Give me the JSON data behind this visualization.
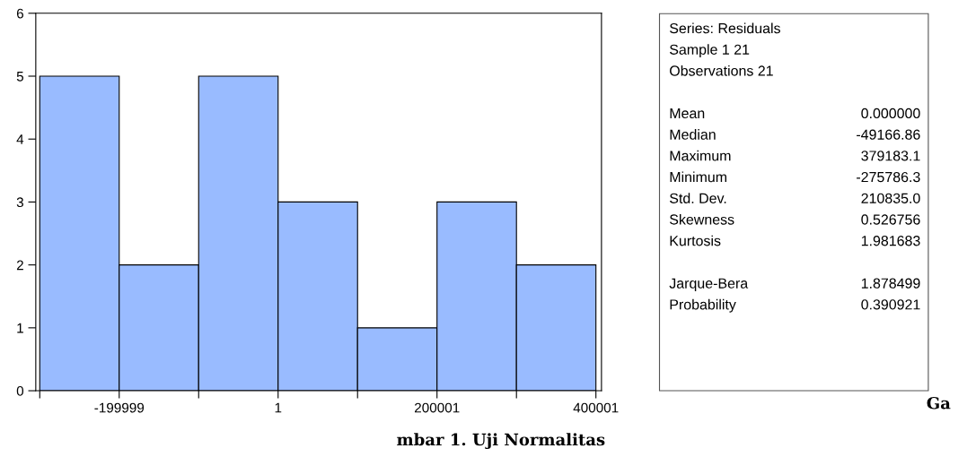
{
  "chart_data": {
    "type": "histogram",
    "color": "#99bbff",
    "bins": [
      -299999,
      -199999,
      -99999,
      1,
      100001,
      200001,
      300001,
      400001
    ],
    "values": [
      5,
      2,
      5,
      3,
      1,
      3,
      2
    ],
    "xlim": [
      -305000,
      407000
    ],
    "xticks": [
      {
        "value": -299999,
        "label": null
      },
      -199999,
      {
        "value": -99999,
        "label": null
      },
      1,
      {
        "value": 100001,
        "label": null
      },
      200001,
      {
        "value": 300001,
        "label": null
      },
      400001
    ],
    "ylim": [
      0,
      6
    ],
    "yticks": [
      0,
      1,
      2,
      3,
      4,
      5,
      6
    ],
    "grid": false,
    "annotations": [
      "Series: Residuals",
      "Sample 1 21",
      "Observations 21",
      "Mean",
      "0.000000",
      "Median",
      "-49166.86",
      "Maximum",
      "379183.1",
      "Minimum",
      "-275786.3",
      "Std. Dev.",
      "210835.0",
      "Skewness",
      "0.526756",
      "Kurtosis",
      "1.981683",
      "Jarque-Bera",
      "1.878499",
      "Probability",
      "0.390921",
      "Ga",
      "mbar 1. Uji Normalitas"
    ]
  }
}
